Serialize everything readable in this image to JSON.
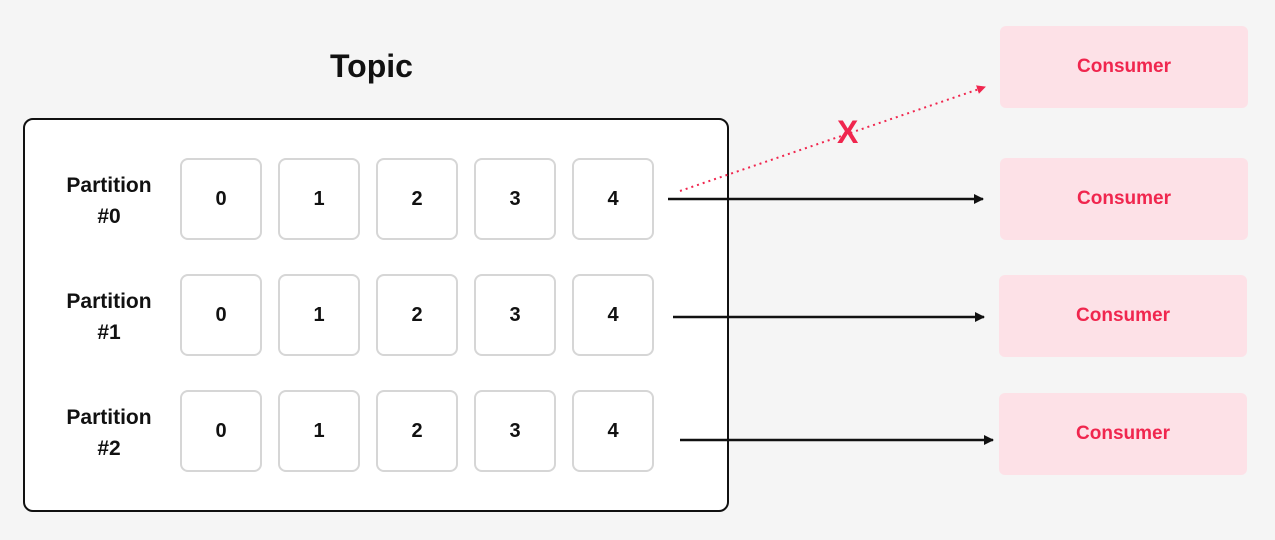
{
  "topic": {
    "title": "Topic"
  },
  "partitions": [
    {
      "label_line1": "Partition",
      "label_line2": "#0",
      "offsets": [
        "0",
        "1",
        "2",
        "3",
        "4"
      ]
    },
    {
      "label_line1": "Partition",
      "label_line2": "#1",
      "offsets": [
        "0",
        "1",
        "2",
        "3",
        "4"
      ]
    },
    {
      "label_line1": "Partition",
      "label_line2": "#2",
      "offsets": [
        "0",
        "1",
        "2",
        "3",
        "4"
      ]
    }
  ],
  "consumers": [
    {
      "label": "Consumer",
      "state": "blocked"
    },
    {
      "label": "Consumer",
      "state": "active"
    },
    {
      "label": "Consumer",
      "state": "active"
    },
    {
      "label": "Consumer",
      "state": "active"
    }
  ],
  "blocked_mark": "X",
  "colors": {
    "accent": "#f0264e",
    "consumer_bg": "#fde1e7",
    "cell_border": "#d6d6d6",
    "line": "#111111"
  }
}
